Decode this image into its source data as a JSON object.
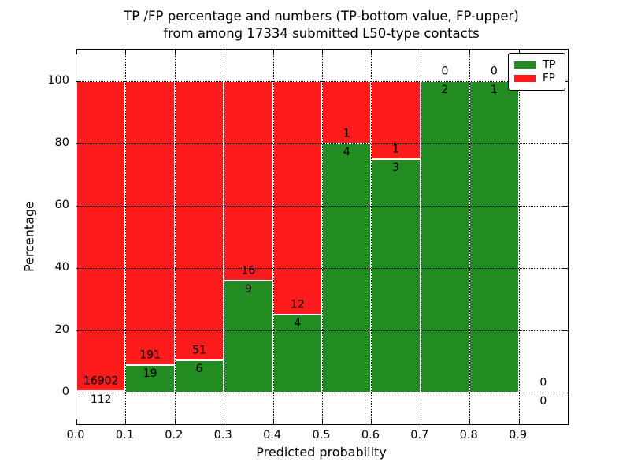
{
  "title": {
    "line1": "TP /FP percentage and numbers (TP-bottom value, FP-upper)",
    "line2": "from among 17334 submitted L50-type contacts"
  },
  "axes": {
    "x_label": "Predicted probability",
    "y_label": "Percentage",
    "x_tick_labels": [
      "0.0",
      "0.1",
      "0.2",
      "0.3",
      "0.4",
      "0.5",
      "0.6",
      "0.7",
      "0.8",
      "0.9"
    ],
    "x_tick_values": [
      0.0,
      0.1,
      0.2,
      0.3,
      0.4,
      0.5,
      0.6,
      0.7,
      0.8,
      0.9
    ],
    "x_grid_values": [
      0.1,
      0.2,
      0.3,
      0.4,
      0.5,
      0.6,
      0.7,
      0.8,
      0.9
    ],
    "y_tick_values": [
      0,
      20,
      40,
      60,
      80,
      100
    ],
    "xlim": [
      0.0,
      1.0
    ],
    "ylim": [
      -10,
      110
    ],
    "grid": "dotted"
  },
  "legend": {
    "position": "upper-right",
    "items": [
      {
        "label": "TP",
        "color": "#228B22"
      },
      {
        "label": "FP",
        "color": "#fc1c1c"
      }
    ]
  },
  "colors": {
    "tp": "#228B22",
    "fp": "#fc1c1c",
    "background": "#ffffff",
    "grid": "#000000"
  },
  "chart_data": {
    "type": "bar",
    "stacked": true,
    "total_submitted": 17334,
    "title": "TP /FP percentage and numbers (TP-bottom value, FP-upper) from among 17334 submitted L50-type contacts",
    "xlabel": "Predicted probability",
    "ylabel": "Percentage",
    "xlim": [
      0.0,
      1.0
    ],
    "ylim": [
      -10,
      110
    ],
    "bin_width": 0.1,
    "bins": [
      {
        "range": "0.0-0.1",
        "tp": 112,
        "fp": 16902,
        "tp_pct": 0.66,
        "fp_pct": 99.34
      },
      {
        "range": "0.1-0.2",
        "tp": 19,
        "fp": 191,
        "tp_pct": 9.05,
        "fp_pct": 90.95
      },
      {
        "range": "0.2-0.3",
        "tp": 6,
        "fp": 51,
        "tp_pct": 10.53,
        "fp_pct": 89.47
      },
      {
        "range": "0.3-0.4",
        "tp": 9,
        "fp": 16,
        "tp_pct": 36.0,
        "fp_pct": 64.0
      },
      {
        "range": "0.4-0.5",
        "tp": 4,
        "fp": 12,
        "tp_pct": 25.0,
        "fp_pct": 75.0
      },
      {
        "range": "0.5-0.6",
        "tp": 4,
        "fp": 1,
        "tp_pct": 80.0,
        "fp_pct": 20.0
      },
      {
        "range": "0.6-0.7",
        "tp": 3,
        "fp": 1,
        "tp_pct": 75.0,
        "fp_pct": 25.0
      },
      {
        "range": "0.7-0.8",
        "tp": 2,
        "fp": 0,
        "tp_pct": 100.0,
        "fp_pct": 0.0
      },
      {
        "range": "0.8-0.9",
        "tp": 1,
        "fp": 0,
        "tp_pct": 100.0,
        "fp_pct": 0.0
      },
      {
        "range": "0.9-1.0",
        "tp": 0,
        "fp": 0,
        "tp_pct": 0.0,
        "fp_pct": 0.0
      }
    ]
  }
}
